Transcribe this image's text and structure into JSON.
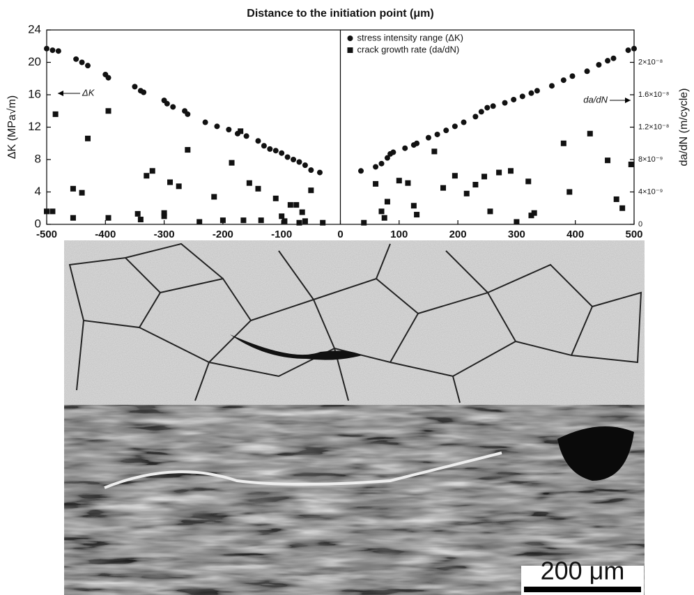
{
  "chart_data": {
    "type": "scatter",
    "title": "Distance to the initiation point (μm)",
    "ylabel": "ΔK (MPa√m)",
    "y2label": "da/dN (m/cycle)",
    "xlim": [
      -500,
      500
    ],
    "xticks": [
      -500,
      -400,
      -300,
      -200,
      -100,
      0,
      100,
      200,
      300,
      400,
      500
    ],
    "ylim": [
      0,
      24
    ],
    "yticks": [
      0,
      4,
      8,
      12,
      16,
      20,
      24
    ],
    "y2lim": [
      0,
      2.4e-08
    ],
    "y2ticks": [
      {
        "value": 0,
        "label": "0"
      },
      {
        "value": 4e-09,
        "label": "4×10⁻⁹"
      },
      {
        "value": 8e-09,
        "label": "8×10⁻⁹"
      },
      {
        "value": 1.2e-08,
        "label": "1.2×10⁻⁸"
      },
      {
        "value": 1.6e-08,
        "label": "1.6×10⁻⁸"
      },
      {
        "value": 2e-08,
        "label": "2×10⁻⁸"
      }
    ],
    "annotations": [
      "ΔK",
      "da/dN"
    ],
    "scale_bar": "200 μm",
    "series": [
      {
        "name": "stress intensity range (ΔK)",
        "color": "#111111",
        "marker": "circle",
        "x": [
          -500,
          -490,
          -480,
          -450,
          -440,
          -430,
          -400,
          -395,
          -350,
          -340,
          -335,
          -300,
          -295,
          -285,
          -265,
          -260,
          -230,
          -210,
          -190,
          -175,
          -160,
          -140,
          -130,
          -120,
          -110,
          -100,
          -90,
          -80,
          -70,
          -60,
          -50,
          -35,
          35,
          60,
          70,
          80,
          85,
          90,
          110,
          125,
          130,
          150,
          165,
          180,
          195,
          210,
          230,
          240,
          250,
          260,
          280,
          295,
          310,
          325,
          335,
          360,
          380,
          395,
          420,
          440,
          455,
          465,
          490,
          500
        ],
        "values": [
          21.7,
          21.5,
          21.4,
          20.4,
          20,
          19.6,
          18.5,
          18.1,
          17,
          16.5,
          16.3,
          15.3,
          14.9,
          14.5,
          14,
          13.6,
          12.6,
          12.1,
          11.7,
          11.2,
          10.9,
          10.3,
          9.7,
          9.3,
          9.1,
          8.8,
          8.3,
          8,
          7.7,
          7.3,
          6.7,
          6.4,
          6.6,
          7.1,
          7.5,
          8.2,
          8.7,
          8.9,
          9.4,
          9.8,
          10,
          10.7,
          11.1,
          11.6,
          12.1,
          12.6,
          13.3,
          13.9,
          14.4,
          14.6,
          15,
          15.4,
          15.8,
          16.2,
          16.5,
          17.1,
          17.8,
          18.3,
          18.9,
          19.7,
          20.2,
          20.5,
          21.5,
          21.7
        ]
      },
      {
        "name": "crack growth rate (da/dN)",
        "color": "#111111",
        "marker": "square",
        "axis": "y2",
        "x": [
          -500,
          -490,
          -485,
          -455,
          -455,
          -440,
          -430,
          -395,
          -395,
          -345,
          -340,
          -330,
          -320,
          -300,
          -300,
          -290,
          -275,
          -260,
          -240,
          -215,
          -200,
          -185,
          -170,
          -165,
          -155,
          -140,
          -135,
          -110,
          -100,
          -95,
          -85,
          -75,
          -70,
          -65,
          -60,
          -50,
          -30,
          40,
          60,
          70,
          75,
          80,
          100,
          115,
          125,
          130,
          160,
          175,
          195,
          215,
          230,
          245,
          255,
          270,
          290,
          300,
          320,
          325,
          330,
          380,
          390,
          425,
          455,
          470,
          480,
          495
        ],
        "values": [
          1.6e-09,
          1.6e-09,
          1.36e-08,
          4.4e-09,
          8e-10,
          3.9e-09,
          1.06e-08,
          1.4e-08,
          8e-10,
          1.3e-09,
          6e-10,
          6e-09,
          6.6e-09,
          1e-09,
          1.4e-09,
          5.2e-09,
          4.7e-09,
          9.2e-09,
          3e-10,
          3.4e-09,
          5e-10,
          7.6e-09,
          1.15e-08,
          5e-10,
          5.1e-09,
          4.4e-09,
          5e-10,
          3.2e-09,
          1e-09,
          4e-10,
          2.4e-09,
          2.4e-09,
          2e-10,
          1.5e-09,
          4e-10,
          4.2e-09,
          2e-10,
          2e-10,
          5e-09,
          1.6e-09,
          8e-10,
          2.8e-09,
          5.4e-09,
          5.1e-09,
          2.3e-09,
          1.2e-09,
          9e-09,
          4.5e-09,
          6e-09,
          3.8e-09,
          4.9e-09,
          5.9e-09,
          1.6e-09,
          6.4e-09,
          6.6e-09,
          3e-10,
          5.3e-09,
          1.1e-09,
          1.4e-09,
          1e-08,
          4e-09,
          1.12e-08,
          7.9e-09,
          3.1e-09,
          2e-09,
          7.4e-09
        ]
      }
    ]
  }
}
